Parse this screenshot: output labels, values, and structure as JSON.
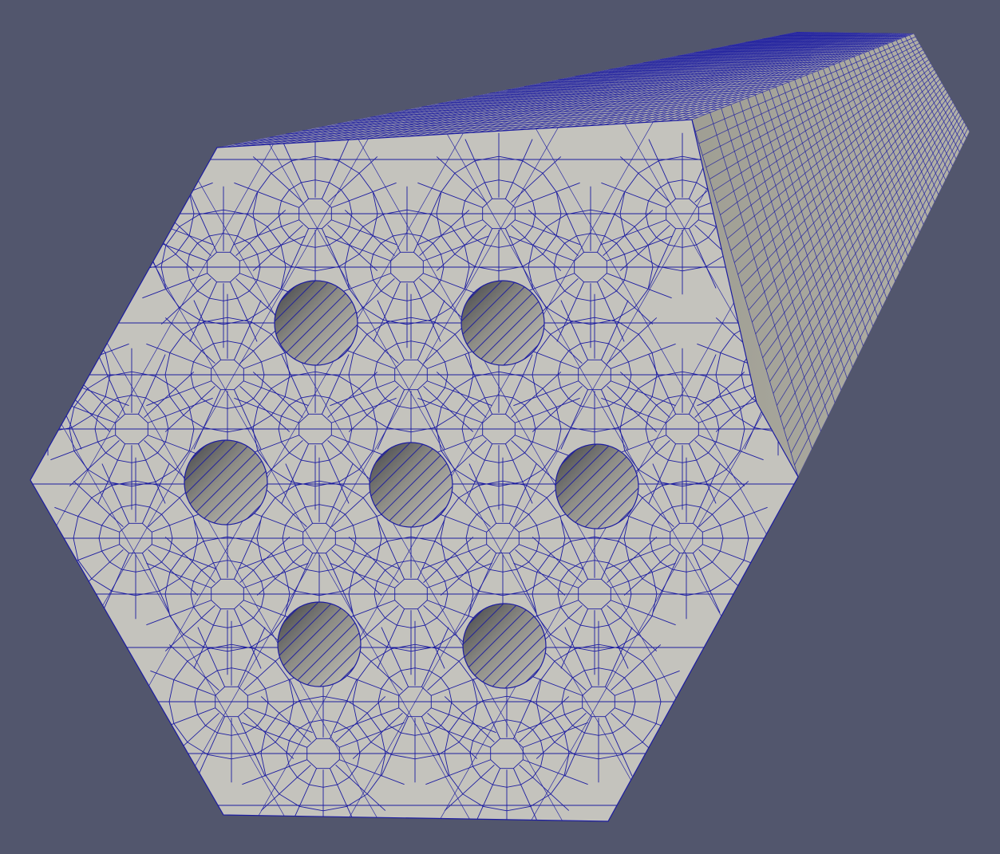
{
  "scene": {
    "background_color": "#52566d",
    "face_color": "#c4c3bd",
    "side_color": "#a3a296",
    "top_color": "#bab9b3",
    "mesh_line_color": "#1c1ca0",
    "hole_inner_light": "#bdbcb3",
    "hole_inner_dark": "#494a4e",
    "hole_count": 7,
    "mesh_type": "hexagonal prism with quad/tri surface mesh"
  }
}
